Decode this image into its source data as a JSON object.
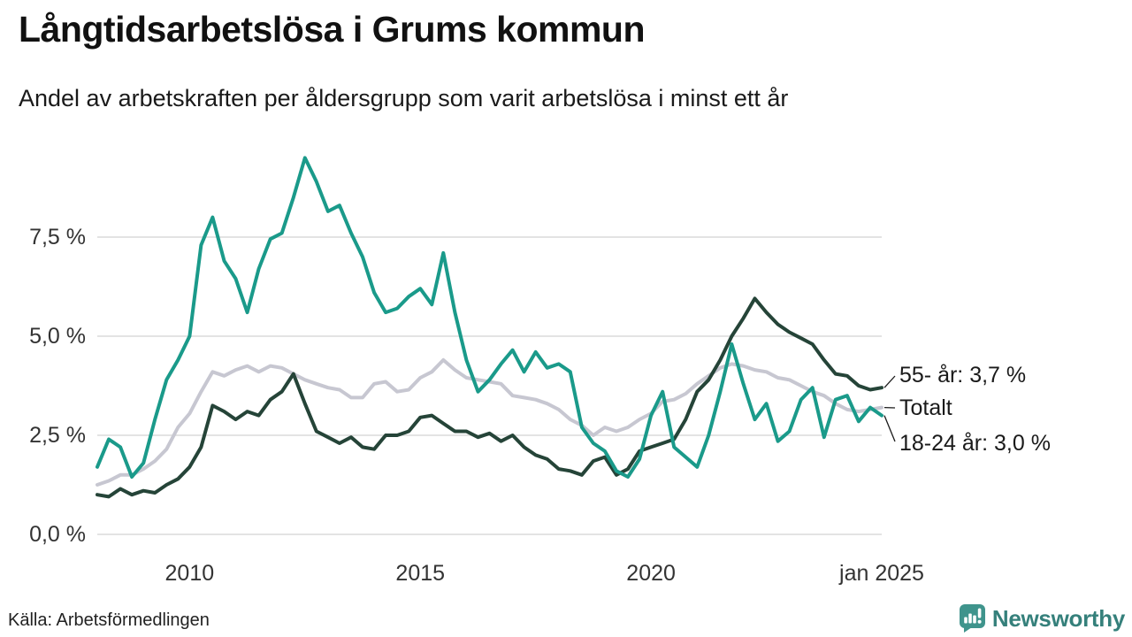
{
  "header": {
    "title": "Långtidsarbetslösa i Grums kommun",
    "subtitle": "Andel av arbetskraften per åldersgrupp som varit arbetslösa i minst ett år"
  },
  "chart_data": {
    "type": "line",
    "title": "Långtidsarbetslösa i Grums kommun",
    "subtitle": "Andel av arbetskraften per åldersgrupp som varit arbetslösa i minst ett år",
    "unit": "%",
    "grid": "horizontal",
    "legend_position": "end-of-line-labels",
    "x_start": 2008.0,
    "x_step": 0.25,
    "x_end": 2025.0,
    "x_ticks": [
      {
        "label": "2010",
        "t": 2010
      },
      {
        "label": "2015",
        "t": 2015
      },
      {
        "label": "2020",
        "t": 2020
      },
      {
        "label": "jan 2025",
        "t": 2025
      }
    ],
    "y_ticks": [
      {
        "label": "0,0 %",
        "v": 0
      },
      {
        "label": "2,5 %",
        "v": 2.5
      },
      {
        "label": "5,0 %",
        "v": 5
      },
      {
        "label": "7,5 %",
        "v": 7.5
      }
    ],
    "ylim": [
      0,
      9.8
    ],
    "colors": {
      "young": "#1a9a8a",
      "total": "#c7c7d1",
      "old": "#254438",
      "grid": "#e3e3e3",
      "leader": "#1a1a1a"
    },
    "series": [
      {
        "id": "totalt",
        "name": "Totalt",
        "color": "#c7c7d1",
        "end_label": "Totalt",
        "values": [
          1.25,
          1.35,
          1.5,
          1.5,
          1.65,
          1.85,
          2.15,
          2.7,
          3.05,
          3.6,
          4.1,
          4.0,
          4.15,
          4.25,
          4.1,
          4.25,
          4.2,
          4.05,
          3.9,
          3.8,
          3.7,
          3.65,
          3.45,
          3.45,
          3.8,
          3.85,
          3.6,
          3.65,
          3.95,
          4.1,
          4.4,
          4.15,
          3.95,
          3.9,
          3.85,
          3.8,
          3.5,
          3.45,
          3.4,
          3.3,
          3.15,
          2.9,
          2.75,
          2.5,
          2.7,
          2.6,
          2.7,
          2.9,
          3.05,
          3.35,
          3.4,
          3.55,
          3.8,
          4.0,
          4.2,
          4.3,
          4.25,
          4.15,
          4.1,
          3.95,
          3.9,
          3.75,
          3.6,
          3.5,
          3.3,
          3.15,
          3.1,
          3.15,
          3.2
        ]
      },
      {
        "id": "55-ar",
        "name": "55- år",
        "color": "#254438",
        "end_label": "55- år: 3,7 %",
        "values": [
          1.0,
          0.95,
          1.15,
          1.0,
          1.1,
          1.05,
          1.25,
          1.4,
          1.7,
          2.2,
          3.25,
          3.1,
          2.9,
          3.1,
          3.0,
          3.4,
          3.6,
          4.05,
          3.3,
          2.6,
          2.45,
          2.3,
          2.45,
          2.2,
          2.15,
          2.5,
          2.5,
          2.6,
          2.95,
          3.0,
          2.8,
          2.6,
          2.6,
          2.45,
          2.55,
          2.35,
          2.5,
          2.2,
          2.0,
          1.9,
          1.65,
          1.6,
          1.5,
          1.85,
          1.95,
          1.5,
          1.65,
          2.1,
          2.2,
          2.3,
          2.4,
          2.9,
          3.6,
          3.9,
          4.4,
          5.0,
          5.45,
          5.95,
          5.6,
          5.3,
          5.1,
          4.95,
          4.8,
          4.4,
          4.05,
          4.0,
          3.75,
          3.65,
          3.7
        ]
      },
      {
        "id": "18-24-ar",
        "name": "18-24 år",
        "color": "#1a9a8a",
        "end_label": "18-24 år: 3,0 %",
        "values": [
          1.7,
          2.4,
          2.2,
          1.45,
          1.8,
          2.9,
          3.9,
          4.4,
          5.0,
          7.3,
          8.0,
          6.9,
          6.45,
          5.6,
          6.7,
          7.45,
          7.6,
          8.5,
          9.5,
          8.9,
          8.15,
          8.3,
          7.6,
          7.0,
          6.1,
          5.6,
          5.7,
          6.0,
          6.2,
          5.8,
          7.1,
          5.6,
          4.4,
          3.6,
          3.9,
          4.3,
          4.65,
          4.1,
          4.6,
          4.2,
          4.3,
          4.1,
          2.7,
          2.3,
          2.1,
          1.6,
          1.45,
          1.9,
          3.0,
          3.6,
          2.2,
          1.95,
          1.7,
          2.5,
          3.6,
          4.8,
          3.8,
          2.9,
          3.3,
          2.35,
          2.6,
          3.4,
          3.7,
          2.45,
          3.4,
          3.5,
          2.85,
          3.2,
          3.0
        ]
      }
    ]
  },
  "footer": {
    "source": "Källa: Arbetsförmedlingen",
    "brand": "Newsworthy"
  }
}
